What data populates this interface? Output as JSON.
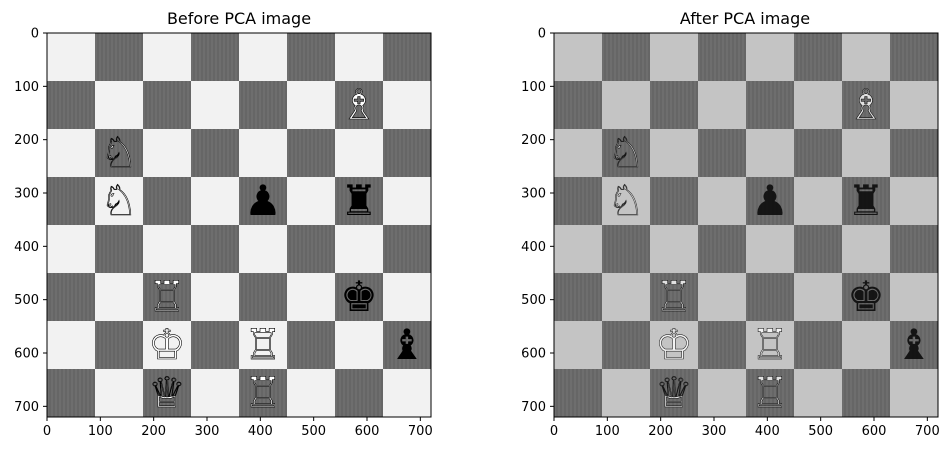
{
  "chart_data": [
    {
      "type": "image",
      "title": "Before PCA image",
      "xlim": [
        0,
        720
      ],
      "ylim": [
        720,
        0
      ],
      "xticks": [
        0,
        100,
        200,
        300,
        400,
        500,
        600,
        700
      ],
      "yticks": [
        0,
        100,
        200,
        300,
        400,
        500,
        600,
        700
      ],
      "board": {
        "size": 8,
        "light_color": "#f2f2f2",
        "dark_color": "#6e6e6e"
      },
      "pieces": [
        {
          "row": 2,
          "col": 7,
          "piece": "bishop",
          "side": "white",
          "glyph": "♗"
        },
        {
          "row": 3,
          "col": 2,
          "piece": "knight",
          "side": "white",
          "glyph": "♘"
        },
        {
          "row": 4,
          "col": 2,
          "piece": "knight",
          "side": "white",
          "glyph": "♘"
        },
        {
          "row": 4,
          "col": 5,
          "piece": "pawn",
          "side": "black",
          "glyph": "♟"
        },
        {
          "row": 4,
          "col": 7,
          "piece": "rook",
          "side": "black",
          "glyph": "♜"
        },
        {
          "row": 6,
          "col": 3,
          "piece": "rook",
          "side": "white",
          "glyph": "♖"
        },
        {
          "row": 6,
          "col": 7,
          "piece": "king",
          "side": "black",
          "glyph": "♚"
        },
        {
          "row": 7,
          "col": 3,
          "piece": "king",
          "side": "white",
          "glyph": "♔"
        },
        {
          "row": 7,
          "col": 5,
          "piece": "rook",
          "side": "white",
          "glyph": "♖"
        },
        {
          "row": 7,
          "col": 8,
          "piece": "bishop",
          "side": "black",
          "glyph": "♝"
        },
        {
          "row": 8,
          "col": 3,
          "piece": "queen",
          "side": "white",
          "glyph": "♕"
        },
        {
          "row": 8,
          "col": 5,
          "piece": "rook",
          "side": "white",
          "glyph": "♖"
        }
      ]
    },
    {
      "type": "image",
      "title": "After PCA image",
      "xlim": [
        0,
        720
      ],
      "ylim": [
        720,
        0
      ],
      "xticks": [
        0,
        100,
        200,
        300,
        400,
        500,
        600,
        700
      ],
      "yticks": [
        0,
        100,
        200,
        300,
        400,
        500,
        600,
        700
      ],
      "board": {
        "size": 8,
        "light_color": "#c4c4c4",
        "dark_color": "#6e6e6e"
      },
      "pieces": [
        {
          "row": 2,
          "col": 7,
          "piece": "bishop",
          "side": "white",
          "glyph": "♗"
        },
        {
          "row": 3,
          "col": 2,
          "piece": "knight",
          "side": "white",
          "glyph": "♘"
        },
        {
          "row": 4,
          "col": 2,
          "piece": "knight",
          "side": "white",
          "glyph": "♘"
        },
        {
          "row": 4,
          "col": 5,
          "piece": "pawn",
          "side": "black",
          "glyph": "♟"
        },
        {
          "row": 4,
          "col": 7,
          "piece": "rook",
          "side": "black",
          "glyph": "♜"
        },
        {
          "row": 6,
          "col": 3,
          "piece": "rook",
          "side": "white",
          "glyph": "♖"
        },
        {
          "row": 6,
          "col": 7,
          "piece": "king",
          "side": "black",
          "glyph": "♚"
        },
        {
          "row": 7,
          "col": 3,
          "piece": "king",
          "side": "white",
          "glyph": "♔"
        },
        {
          "row": 7,
          "col": 5,
          "piece": "rook",
          "side": "white",
          "glyph": "♖"
        },
        {
          "row": 7,
          "col": 8,
          "piece": "bishop",
          "side": "black",
          "glyph": "♝"
        },
        {
          "row": 8,
          "col": 3,
          "piece": "queen",
          "side": "white",
          "glyph": "♕"
        },
        {
          "row": 8,
          "col": 5,
          "piece": "rook",
          "side": "white",
          "glyph": "♖"
        }
      ]
    }
  ]
}
